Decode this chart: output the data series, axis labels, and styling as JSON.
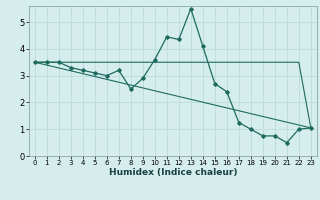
{
  "xlabel": "Humidex (Indice chaleur)",
  "bg_color": "#d5eeed",
  "grid_color": "#c0dcdc",
  "line_color": "#1e6b5e",
  "xlim": [
    -0.5,
    23.5
  ],
  "ylim": [
    0,
    5.6
  ],
  "xticks": [
    0,
    1,
    2,
    3,
    4,
    5,
    6,
    7,
    8,
    9,
    10,
    11,
    12,
    13,
    14,
    15,
    16,
    17,
    18,
    19,
    20,
    21,
    22,
    23
  ],
  "yticks": [
    0,
    1,
    2,
    3,
    4,
    5
  ],
  "series1_x": [
    0,
    1,
    2,
    3,
    4,
    5,
    6,
    7,
    8,
    9,
    10,
    11,
    12,
    13,
    14,
    15,
    16,
    17,
    18,
    19,
    20,
    21,
    22,
    23
  ],
  "series1_y": [
    3.5,
    3.5,
    3.5,
    3.3,
    3.2,
    3.1,
    3.0,
    3.2,
    2.5,
    2.9,
    3.6,
    4.45,
    4.35,
    5.5,
    4.1,
    2.7,
    2.4,
    1.25,
    1.0,
    0.75,
    0.75,
    0.5,
    1.0,
    1.05
  ],
  "series2_x": [
    0,
    1,
    2,
    3,
    4,
    5,
    6,
    7,
    8,
    9,
    10,
    11,
    12,
    13,
    14,
    15,
    16,
    17,
    18,
    19,
    20,
    21,
    22,
    23
  ],
  "series2_y": [
    3.5,
    3.5,
    3.5,
    3.5,
    3.5,
    3.5,
    3.5,
    3.5,
    3.5,
    3.5,
    3.5,
    3.5,
    3.5,
    3.5,
    3.5,
    3.5,
    3.5,
    3.5,
    3.5,
    3.5,
    3.5,
    3.5,
    3.5,
    1.05
  ],
  "series3_x": [
    0,
    23
  ],
  "series3_y": [
    3.5,
    1.05
  ]
}
